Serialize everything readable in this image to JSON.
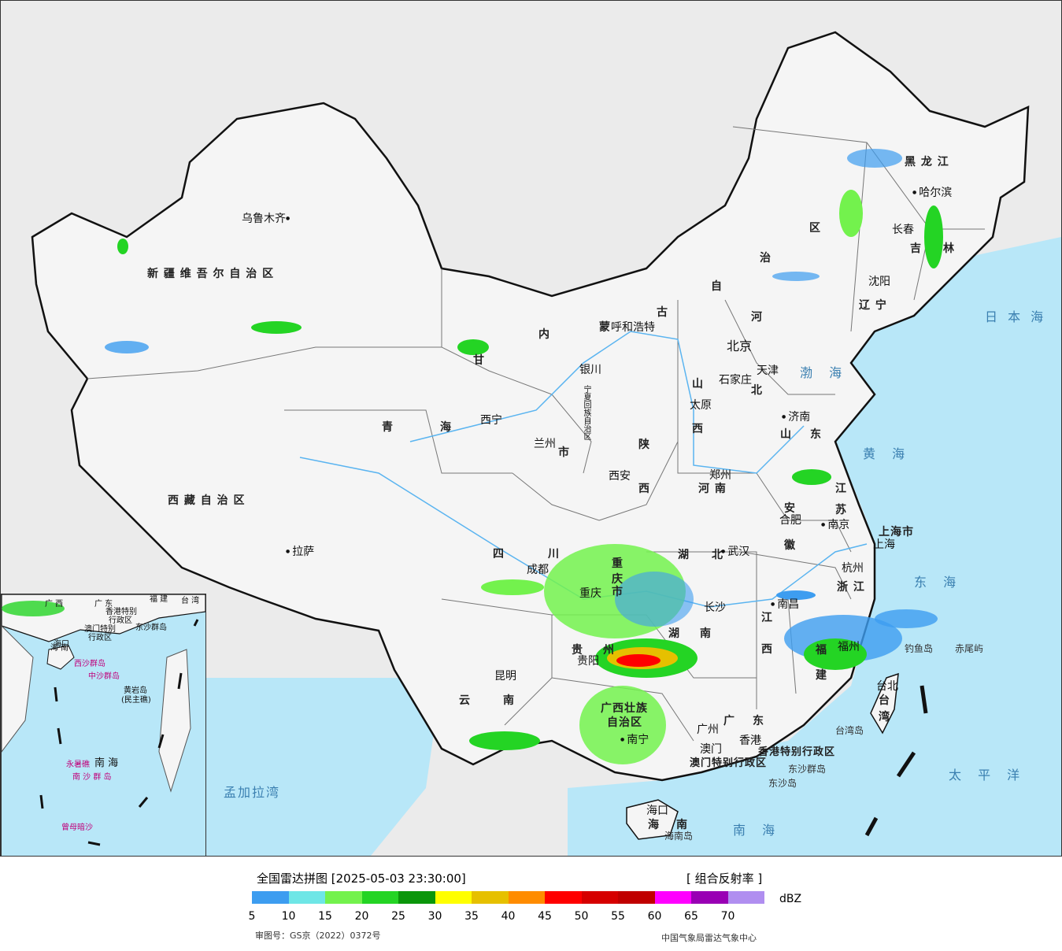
{
  "legend": {
    "title": "全国雷达拼图 [2025-05-03 23:30:00]",
    "product": "[ 组合反射率 ]",
    "unit": "dBZ",
    "ticks": [
      "5",
      "10",
      "15",
      "20",
      "25",
      "30",
      "35",
      "40",
      "45",
      "50",
      "55",
      "60",
      "65",
      "70"
    ],
    "colors": [
      "#3d9df0",
      "#6ee6e6",
      "#73f24d",
      "#24d424",
      "#0a960a",
      "#ffff00",
      "#e6c000",
      "#ff8c00",
      "#ff0000",
      "#d60000",
      "#c00000",
      "#ff00ff",
      "#9900b4",
      "#b08ef0"
    ],
    "review_no": "审图号：GS京（2022）0372号",
    "credit": "中国气象局雷达气象中心"
  },
  "provinces": [
    "新 疆 维 吾 尔 自 治 区",
    "西 藏 自 治 区",
    "青",
    "海",
    "甘",
    "内",
    "蒙",
    "古",
    "自",
    "治",
    "区",
    "黑 龙 江",
    "吉",
    "林",
    "辽 宁",
    "河",
    "北",
    "山",
    "西",
    "陕",
    "西",
    "山",
    "东",
    "河 南",
    "江",
    "苏",
    "安",
    "徽",
    "浙 江",
    "湖",
    "北",
    "湖",
    "南",
    "江",
    "西",
    "四",
    "川",
    "重",
    "庆",
    "市",
    "贵",
    "州",
    "云",
    "南",
    "广西壮族",
    "自治区",
    "广",
    "东",
    "福",
    "建",
    "台",
    "湾",
    "海",
    "南",
    "宁夏回族自治区",
    "市",
    "上海市",
    "香港特别行政区",
    "澳门特别行政区"
  ],
  "cities": [
    "乌鲁木齐",
    "拉萨",
    "西宁",
    "兰州",
    "银川",
    "呼和浩特",
    "北京",
    "天津",
    "石家庄",
    "太原",
    "济南",
    "郑州",
    "西安",
    "成都",
    "重庆",
    "贵阳",
    "昆明",
    "南宁",
    "广州",
    "香港",
    "澳门",
    "长沙",
    "武汉",
    "南昌",
    "合肥",
    "南京",
    "上海",
    "杭州",
    "福州",
    "台北",
    "哈尔滨",
    "长春",
    "沈阳",
    "海口"
  ],
  "seas": [
    "渤 海",
    "黄 海",
    "东 海",
    "南 海",
    "日 本 海",
    "太 平 洋",
    "孟加拉湾"
  ],
  "islands": [
    "钓鱼岛",
    "赤尾屿",
    "台湾岛",
    "东沙群岛",
    "东沙岛",
    "海南岛"
  ],
  "inset": {
    "labels": [
      "南 海",
      "海 南",
      "广 东",
      "广 西",
      "福 建",
      "台 湾",
      "香港特别",
      "行政区",
      "澳门特别",
      "行政区",
      "东沙群岛",
      "海口",
      "西沙群岛",
      "中沙群岛",
      "黄岩岛",
      "(民主礁)",
      "永暑礁",
      "南 沙 群 岛",
      "曾母暗沙"
    ]
  }
}
